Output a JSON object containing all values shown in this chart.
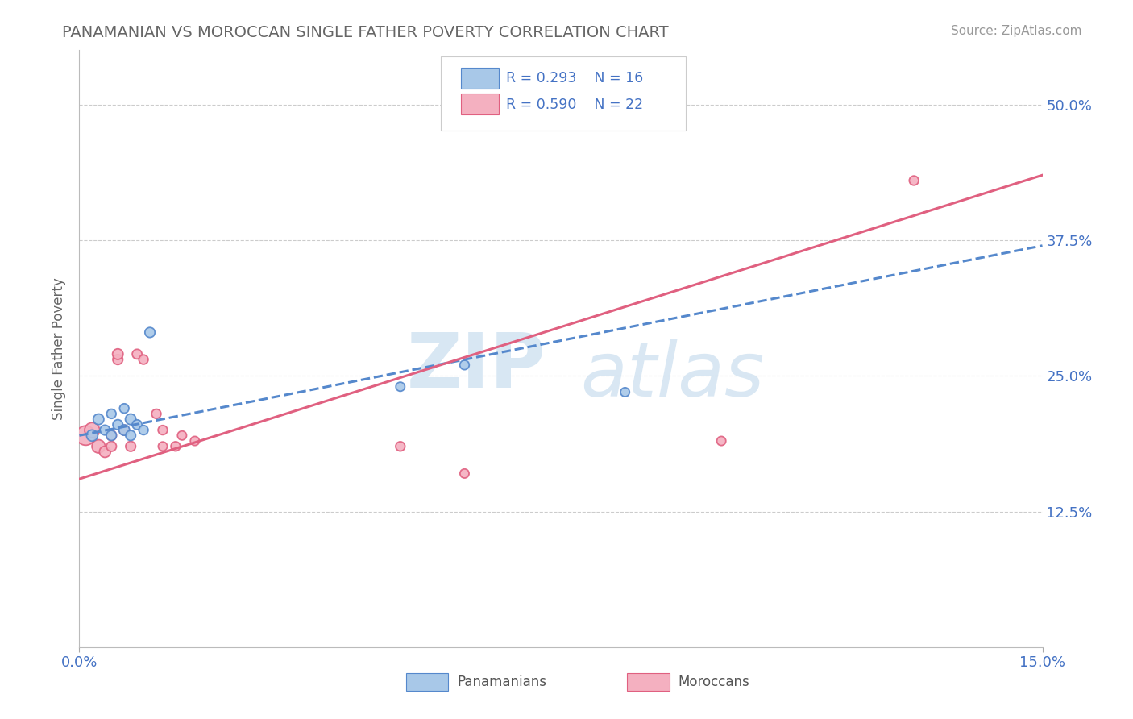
{
  "title": "PANAMANIAN VS MOROCCAN SINGLE FATHER POVERTY CORRELATION CHART",
  "source": "Source: ZipAtlas.com",
  "xlim": [
    0.0,
    0.15
  ],
  "ylim": [
    0.0,
    0.55
  ],
  "ylabel": "Single Father Poverty",
  "panamanian_color": "#a8c8e8",
  "moroccan_color": "#f4b0c0",
  "panamanian_line_color": "#5588cc",
  "moroccan_line_color": "#e06080",
  "R_pan": 0.293,
  "N_pan": 16,
  "R_mor": 0.59,
  "N_mor": 22,
  "pan_x": [
    0.002,
    0.003,
    0.004,
    0.005,
    0.005,
    0.006,
    0.007,
    0.007,
    0.008,
    0.008,
    0.009,
    0.01,
    0.011,
    0.05,
    0.06,
    0.085
  ],
  "pan_y": [
    0.195,
    0.21,
    0.2,
    0.195,
    0.215,
    0.205,
    0.2,
    0.22,
    0.195,
    0.21,
    0.205,
    0.2,
    0.29,
    0.24,
    0.26,
    0.235
  ],
  "pan_size": [
    100,
    90,
    80,
    80,
    70,
    80,
    90,
    70,
    80,
    90,
    75,
    70,
    80,
    65,
    70,
    65
  ],
  "mor_x": [
    0.001,
    0.002,
    0.003,
    0.004,
    0.005,
    0.005,
    0.006,
    0.006,
    0.007,
    0.008,
    0.009,
    0.01,
    0.012,
    0.013,
    0.013,
    0.015,
    0.016,
    0.018,
    0.05,
    0.06,
    0.1,
    0.13
  ],
  "mor_y": [
    0.195,
    0.2,
    0.185,
    0.18,
    0.195,
    0.185,
    0.265,
    0.27,
    0.2,
    0.185,
    0.27,
    0.265,
    0.215,
    0.2,
    0.185,
    0.185,
    0.195,
    0.19,
    0.185,
    0.16,
    0.19,
    0.43
  ],
  "mor_size": [
    300,
    180,
    140,
    100,
    80,
    80,
    80,
    90,
    80,
    80,
    75,
    70,
    70,
    70,
    65,
    70,
    65,
    65,
    70,
    65,
    65,
    70
  ],
  "pan_line_x0": 0.0,
  "pan_line_x1": 0.15,
  "pan_line_y0": 0.195,
  "pan_line_y1": 0.37,
  "mor_line_x0": 0.0,
  "mor_line_x1": 0.15,
  "mor_line_y0": 0.155,
  "mor_line_y1": 0.435,
  "ytick_vals": [
    0.125,
    0.25,
    0.375,
    0.5
  ],
  "ytick_labels": [
    "12.5%",
    "25.0%",
    "37.5%",
    "50.0%"
  ],
  "xtick_vals": [
    0.0,
    0.15
  ],
  "xtick_labels": [
    "0.0%",
    "15.0%"
  ],
  "grid_color": "#cccccc",
  "bg_color": "#ffffff",
  "text_color_blue": "#4472c4",
  "title_color": "#666666",
  "source_color": "#999999"
}
